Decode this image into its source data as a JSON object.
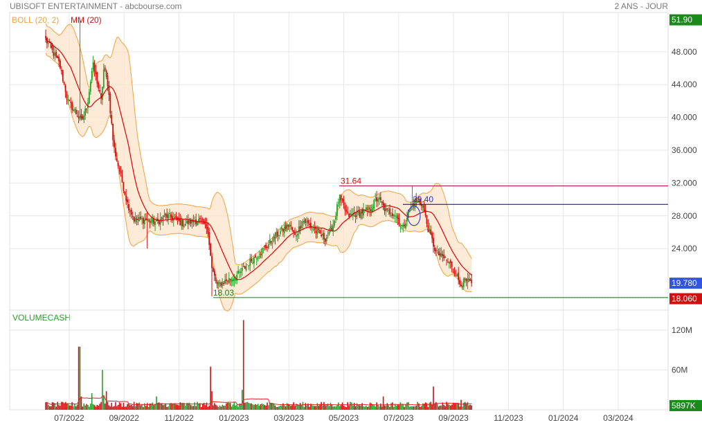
{
  "header": {
    "title": "UBISOFT ENTERTAINMENT - abcbourse.com",
    "period": "2 ANS - JOUR"
  },
  "legend": {
    "boll": "BOLL (20, 2)",
    "mm": "MM (20)",
    "volume": "VOLUMECASH"
  },
  "colors": {
    "up": "#22a02a",
    "down": "#cc1111",
    "band_fill": "#fde3c6",
    "band_line": "#f0a040",
    "ma": "#dd0000",
    "level_line": "#1a7a1a",
    "high_line": "#aa0033",
    "blue_line": "#000077",
    "last_badge": "#3355dd",
    "low_badge": "#cc1111",
    "high_badge": "#1a8a1a"
  },
  "chart_data": [
    {
      "type": "candlestick",
      "title": "UBISOFT ENTERTAINMENT",
      "y_axis": {
        "ticks": [
          "48.000",
          "44.000",
          "40.000",
          "36.000",
          "32.000",
          "28.000",
          "24.000"
        ],
        "ylim": [
          16.5,
          52.8
        ]
      },
      "x_axis": {
        "ticks": [
          "07/2022",
          "09/2022",
          "11/2022",
          "01/2023",
          "03/2023",
          "05/2023",
          "07/2023",
          "09/2023",
          "11/2023",
          "01/2024",
          "03/2024"
        ]
      },
      "grid": true,
      "badges": {
        "high": "51.90",
        "last": "19.780",
        "low": "18.060"
      },
      "annotations": {
        "high": {
          "label": "31.64",
          "value": 31.64
        },
        "mid": {
          "label": "29.40",
          "value": 29.4
        },
        "low": {
          "label": "18.03",
          "value": 18.03
        }
      },
      "anchors": [
        {
          "m": 0.0,
          "v": 49.5
        },
        {
          "m": 0.5,
          "v": 46.5
        },
        {
          "m": 0.8,
          "v": 42.0
        },
        {
          "m": 1.1,
          "v": 40.5
        },
        {
          "m": 1.3,
          "v": 39.5
        },
        {
          "m": 1.5,
          "v": 41.5
        },
        {
          "m": 1.7,
          "v": 46.5
        },
        {
          "m": 1.85,
          "v": 44.5
        },
        {
          "m": 2.0,
          "v": 42.0
        },
        {
          "m": 2.1,
          "v": 46.0
        },
        {
          "m": 2.25,
          "v": 44.0
        },
        {
          "m": 2.45,
          "v": 36.5
        },
        {
          "m": 2.7,
          "v": 33.0
        },
        {
          "m": 2.95,
          "v": 29.5
        },
        {
          "m": 3.2,
          "v": 27.5
        },
        {
          "m": 3.6,
          "v": 27.5
        },
        {
          "m": 4.0,
          "v": 27.2
        },
        {
          "m": 4.4,
          "v": 28.0
        },
        {
          "m": 4.7,
          "v": 27.5
        },
        {
          "m": 5.0,
          "v": 27.0
        },
        {
          "m": 5.5,
          "v": 27.5
        },
        {
          "m": 5.85,
          "v": 26.5
        },
        {
          "m": 6.0,
          "v": 21.5
        },
        {
          "m": 6.2,
          "v": 19.5
        },
        {
          "m": 6.45,
          "v": 20.0
        },
        {
          "m": 6.8,
          "v": 20.5
        },
        {
          "m": 7.0,
          "v": 21.0
        },
        {
          "m": 7.4,
          "v": 22.5
        },
        {
          "m": 7.9,
          "v": 24.0
        },
        {
          "m": 8.4,
          "v": 25.8
        },
        {
          "m": 8.8,
          "v": 27.0
        },
        {
          "m": 9.0,
          "v": 25.5
        },
        {
          "m": 9.3,
          "v": 27.5
        },
        {
          "m": 9.7,
          "v": 26.3
        },
        {
          "m": 10.1,
          "v": 25.2
        },
        {
          "m": 10.4,
          "v": 27.0
        },
        {
          "m": 10.6,
          "v": 30.3
        },
        {
          "m": 10.9,
          "v": 28.0
        },
        {
          "m": 11.3,
          "v": 28.3
        },
        {
          "m": 11.7,
          "v": 28.8
        },
        {
          "m": 12.0,
          "v": 30.2
        },
        {
          "m": 12.3,
          "v": 28.5
        },
        {
          "m": 12.6,
          "v": 28.3
        },
        {
          "m": 12.9,
          "v": 26.5
        },
        {
          "m": 13.1,
          "v": 28.5
        },
        {
          "m": 13.35,
          "v": 29.8
        },
        {
          "m": 13.6,
          "v": 29.5
        },
        {
          "m": 13.8,
          "v": 26.5
        },
        {
          "m": 14.1,
          "v": 23.5
        },
        {
          "m": 14.4,
          "v": 22.8
        },
        {
          "m": 14.7,
          "v": 21.8
        },
        {
          "m": 14.95,
          "v": 19.8
        },
        {
          "m": 15.2,
          "v": 20.0
        },
        {
          "m": 15.4,
          "v": 19.78
        }
      ],
      "spikes": [
        {
          "m": 1.22,
          "v": 51.9
        },
        {
          "m": 6.02,
          "v": 18.2
        },
        {
          "m": 3.65,
          "v": 24.0
        },
        {
          "m": 13.25,
          "v": 31.64
        }
      ]
    },
    {
      "type": "bar",
      "title": "VOLUMECASH",
      "y_axis": {
        "ticks": [
          "120M",
          "60M"
        ],
        "ylim": [
          0,
          150
        ]
      },
      "badges": {
        "last": "5897K"
      },
      "base_level": 8,
      "ma_level": 14,
      "peaks": [
        {
          "m": 1.22,
          "v": 95
        },
        {
          "m": 1.3,
          "v": 20
        },
        {
          "m": 1.65,
          "v": 25
        },
        {
          "m": 2.05,
          "v": 60
        },
        {
          "m": 2.1,
          "v": 22
        },
        {
          "m": 2.2,
          "v": 28
        },
        {
          "m": 5.95,
          "v": 65
        },
        {
          "m": 6.0,
          "v": 28
        },
        {
          "m": 7.15,
          "v": 135
        },
        {
          "m": 7.1,
          "v": 30
        },
        {
          "m": 12.2,
          "v": 20
        },
        {
          "m": 14.0,
          "v": 35
        },
        {
          "m": 15.0,
          "v": 15
        },
        {
          "m": 4.0,
          "v": 20
        }
      ]
    }
  ]
}
